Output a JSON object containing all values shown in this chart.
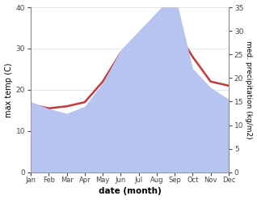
{
  "months": [
    "Jan",
    "Feb",
    "Mar",
    "Apr",
    "May",
    "Jun",
    "Jul",
    "Aug",
    "Sep",
    "Oct",
    "Nov",
    "Dec"
  ],
  "x": [
    1,
    2,
    3,
    4,
    5,
    6,
    7,
    8,
    9,
    10,
    11,
    12
  ],
  "temperature": [
    16.5,
    15.5,
    16.0,
    17.0,
    22.0,
    29.0,
    32.5,
    35.0,
    35.0,
    28.0,
    22.0,
    21.0
  ],
  "precipitation": [
    15.0,
    13.5,
    12.5,
    14.0,
    19.0,
    26.0,
    30.0,
    34.0,
    38.0,
    22.0,
    18.0,
    15.5
  ],
  "temp_color": "#c0393b",
  "precip_color": "#b8c4f0",
  "left_ylabel": "max temp (C)",
  "right_ylabel": "med. precipitation (kg/m2)",
  "xlabel": "date (month)",
  "ylim_left": [
    0,
    40
  ],
  "ylim_right": [
    0,
    35
  ],
  "yticks_left": [
    0,
    10,
    20,
    30,
    40
  ],
  "yticks_right": [
    0,
    5,
    10,
    15,
    20,
    25,
    30,
    35
  ],
  "bg_color": "#ffffff"
}
